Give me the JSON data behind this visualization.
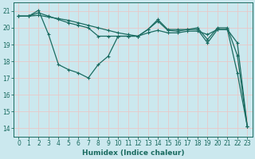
{
  "xlabel": "Humidex (Indice chaleur)",
  "bg_color": "#cbe8ee",
  "line_color": "#1a6b60",
  "grid_color": "#e8c8c8",
  "ylim": [
    13.5,
    21.5
  ],
  "xlim": [
    -0.5,
    23.5
  ],
  "yticks": [
    14,
    15,
    16,
    17,
    18,
    19,
    20,
    21
  ],
  "xticks": [
    0,
    1,
    2,
    3,
    4,
    5,
    6,
    7,
    8,
    9,
    10,
    11,
    12,
    13,
    14,
    15,
    16,
    17,
    18,
    19,
    20,
    21,
    22,
    23
  ],
  "series1_x": [
    0,
    1,
    2,
    3,
    4,
    5,
    6,
    7,
    8,
    9,
    10,
    11,
    12,
    13,
    14,
    15,
    16,
    17,
    18,
    19,
    20,
    21,
    22,
    23
  ],
  "series1_y": [
    20.7,
    20.7,
    20.75,
    20.65,
    20.55,
    20.45,
    20.3,
    20.15,
    20.0,
    19.85,
    19.7,
    19.6,
    19.5,
    19.7,
    19.85,
    19.7,
    19.7,
    19.8,
    19.8,
    19.6,
    19.9,
    19.9,
    19.1,
    14.1
  ],
  "series2_x": [
    0,
    1,
    2,
    3,
    4,
    5,
    6,
    7,
    8,
    9,
    10,
    11,
    12,
    13,
    14,
    15,
    16,
    17,
    18,
    19,
    20,
    21,
    22,
    23
  ],
  "series2_y": [
    20.7,
    20.7,
    20.9,
    20.7,
    20.5,
    20.3,
    20.15,
    20.0,
    19.5,
    19.5,
    19.5,
    19.5,
    19.5,
    19.9,
    20.4,
    19.85,
    19.8,
    19.9,
    20.0,
    19.3,
    20.0,
    20.0,
    18.35,
    14.1
  ],
  "series3_x": [
    0,
    1,
    2,
    3,
    4,
    5,
    6,
    7,
    8,
    9,
    10,
    11,
    12,
    13,
    14,
    15,
    16,
    17,
    18,
    19,
    20,
    21,
    22,
    23
  ],
  "series3_y": [
    20.7,
    20.7,
    21.05,
    19.6,
    17.8,
    17.5,
    17.3,
    17.0,
    17.8,
    18.3,
    19.5,
    19.5,
    19.5,
    19.9,
    20.5,
    19.9,
    19.9,
    19.9,
    19.9,
    19.1,
    19.9,
    19.9,
    17.3,
    14.1
  ],
  "marker_size": 2.0,
  "linewidth": 0.9
}
